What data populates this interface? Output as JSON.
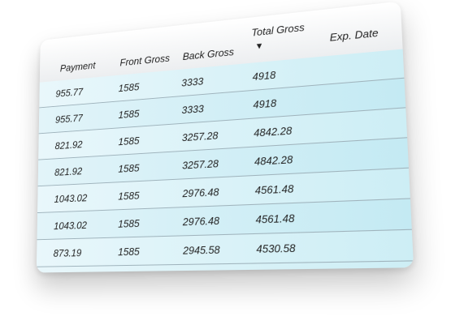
{
  "columns": {
    "payment": "Payment",
    "front_gross": "Front Gross",
    "back_gross": "Back Gross",
    "total_gross": "Total Gross",
    "exp_date": "Exp. Date"
  },
  "sort_indicator": "▼",
  "rows": [
    {
      "payment": "955.77",
      "front_gross": "1585",
      "back_gross": "3333",
      "total_gross": "4918",
      "exp_date": ""
    },
    {
      "payment": "955.77",
      "front_gross": "1585",
      "back_gross": "3333",
      "total_gross": "4918",
      "exp_date": ""
    },
    {
      "payment": "821.92",
      "front_gross": "1585",
      "back_gross": "3257.28",
      "total_gross": "4842.28",
      "exp_date": ""
    },
    {
      "payment": "821.92",
      "front_gross": "1585",
      "back_gross": "3257.28",
      "total_gross": "4842.28",
      "exp_date": ""
    },
    {
      "payment": "1043.02",
      "front_gross": "1585",
      "back_gross": "2976.48",
      "total_gross": "4561.48",
      "exp_date": ""
    },
    {
      "payment": "1043.02",
      "front_gross": "1585",
      "back_gross": "2976.48",
      "total_gross": "4561.48",
      "exp_date": ""
    },
    {
      "payment": "873.19",
      "front_gross": "1585",
      "back_gross": "2945.58",
      "total_gross": "4530.58",
      "exp_date": ""
    }
  ]
}
